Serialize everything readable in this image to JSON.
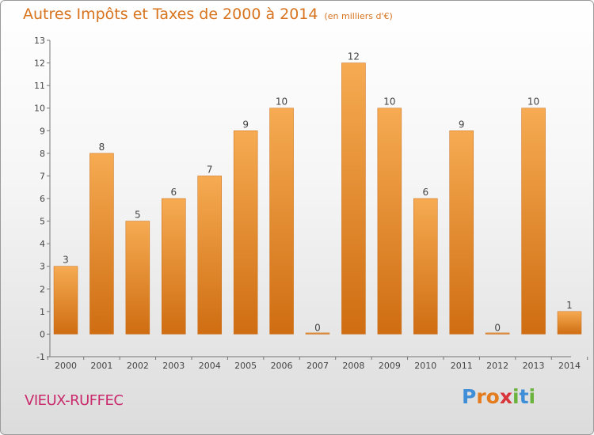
{
  "header": {
    "title": "Autres Impôts et Taxes de 2000 à 2014",
    "unit": "(en milliers d'€)"
  },
  "footer": {
    "commune": "VIEUX-RUFFEC",
    "logo": "Proxiti"
  },
  "colors": {
    "title": "#d8731e",
    "bar_light": "#f5a84e",
    "bar_dark": "#d06f14",
    "commune": "#c92a6b",
    "logo_letters": [
      "#3f8fd8",
      "#e47b1c",
      "#e47b1c",
      "#d8343a",
      "#6bb33c",
      "#3f8fd8",
      "#6bb33c"
    ]
  },
  "chart_data": {
    "type": "bar",
    "title": "Autres Impôts et Taxes de 2000 à 2014",
    "subtitle": "(en milliers d'€)",
    "categories": [
      "2000",
      "2001",
      "2002",
      "2003",
      "2004",
      "2005",
      "2006",
      "2007",
      "2008",
      "2009",
      "2010",
      "2011",
      "2012",
      "2013",
      "2014"
    ],
    "values": [
      3,
      8,
      5,
      6,
      7,
      9,
      10,
      0,
      12,
      10,
      6,
      9,
      0,
      10,
      1
    ],
    "ylim": [
      -1,
      13
    ],
    "yticks": [
      -1,
      0,
      1,
      2,
      3,
      4,
      5,
      6,
      7,
      8,
      9,
      10,
      11,
      12,
      13
    ],
    "grid": false,
    "legend": "none"
  }
}
